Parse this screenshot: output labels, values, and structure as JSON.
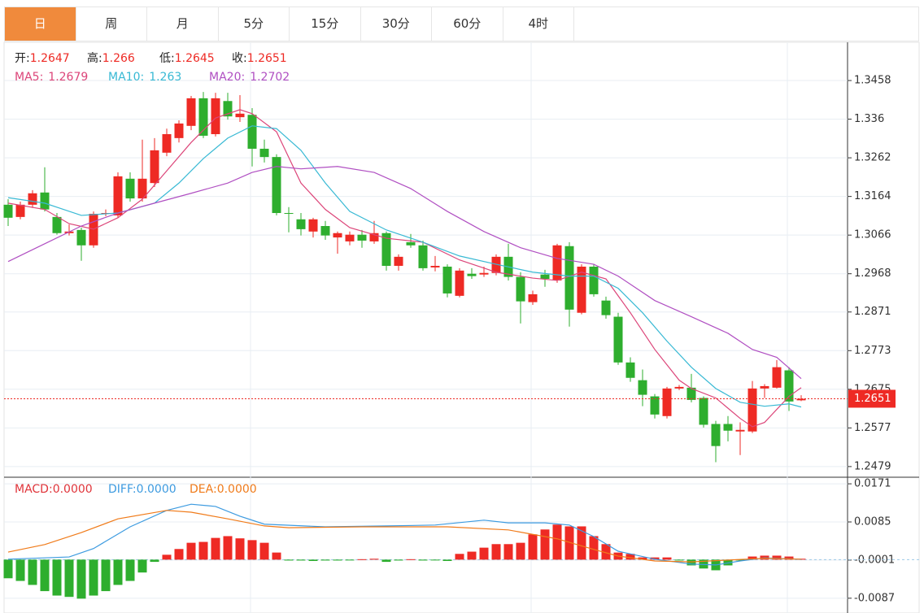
{
  "tabs": {
    "items": [
      "日",
      "周",
      "月",
      "5分",
      "15分",
      "30分",
      "60分",
      "4时"
    ],
    "active": 0
  },
  "chart_data": [
    {
      "type": "candlestick",
      "up_color": "#ee2a24",
      "down_color": "#2eae2e",
      "ylim": [
        1.2454,
        1.3555
      ],
      "yticks": [
        1.3458,
        1.336,
        1.3262,
        1.3164,
        1.3066,
        1.2968,
        1.2871,
        1.2773,
        1.2675,
        1.2577,
        1.2479
      ],
      "grid": true,
      "ohlc_labels": [
        "开:",
        "高:",
        "低:",
        "收:"
      ],
      "current_price": 1.2651,
      "open": [
        1.3143,
        1.3112,
        1.3143,
        1.3174,
        1.3112,
        1.3071,
        1.3079,
        1.304,
        1.312,
        1.3116,
        1.3209,
        1.3159,
        1.3198,
        1.3275,
        1.3312,
        1.3343,
        1.3413,
        1.3322,
        1.3406,
        1.3365,
        1.3371,
        1.3285,
        1.3264,
        1.3122,
        1.3106,
        1.3075,
        1.3089,
        1.306,
        1.305,
        1.3067,
        1.305,
        1.3071,
        1.2988,
        1.3048,
        1.304,
        1.2984,
        1.2986,
        1.2912,
        1.2968,
        1.2966,
        1.297,
        1.3011,
        1.296,
        1.2896,
        1.2966,
        1.2951,
        1.3038,
        1.2869,
        1.2986,
        1.29,
        1.2859,
        1.2743,
        1.2698,
        1.2657,
        1.2607,
        1.2677,
        1.2679,
        1.2653,
        1.2587,
        1.2587,
        1.2568,
        1.2568,
        1.2677,
        1.2679,
        1.2723,
        1.2647
      ],
      "high": [
        1.3157,
        1.3151,
        1.318,
        1.3238,
        1.3122,
        1.3093,
        1.3085,
        1.3126,
        1.3131,
        1.3225,
        1.3225,
        1.3308,
        1.3312,
        1.3336,
        1.3357,
        1.3419,
        1.3429,
        1.3427,
        1.3427,
        1.3421,
        1.3388,
        1.3308,
        1.3271,
        1.3137,
        1.3122,
        1.311,
        1.3102,
        1.3075,
        1.3075,
        1.3079,
        1.3102,
        1.3075,
        1.3017,
        1.3069,
        1.3052,
        1.3013,
        1.2992,
        1.2982,
        1.2982,
        1.2986,
        1.3017,
        1.3044,
        1.2972,
        1.2925,
        1.2978,
        1.3044,
        1.3048,
        1.2992,
        1.2992,
        1.291,
        1.2869,
        1.2756,
        1.2725,
        1.2663,
        1.2681,
        1.2686,
        1.2714,
        1.2657,
        1.2595,
        1.2607,
        1.2591,
        1.2696,
        1.2688,
        1.2749,
        1.2731,
        1.266
      ],
      "low": [
        1.3089,
        1.3106,
        1.3135,
        1.3126,
        1.3067,
        1.3065,
        1.3001,
        1.3034,
        1.3114,
        1.311,
        1.3151,
        1.3151,
        1.3188,
        1.3266,
        1.3301,
        1.3332,
        1.3312,
        1.3316,
        1.3359,
        1.3353,
        1.324,
        1.325,
        1.3116,
        1.3073,
        1.3065,
        1.306,
        1.3054,
        1.3019,
        1.304,
        1.3034,
        1.3044,
        1.2976,
        1.2976,
        1.3034,
        1.2976,
        1.2974,
        1.2908,
        1.2908,
        1.2955,
        1.296,
        1.2964,
        1.2951,
        1.2842,
        1.2889,
        1.2935,
        1.2945,
        1.2834,
        1.2865,
        1.291,
        1.2854,
        1.2737,
        1.2694,
        1.2632,
        1.2601,
        1.2601,
        1.2673,
        1.2642,
        1.2578,
        1.249,
        1.2543,
        1.2508,
        1.2564,
        1.2653,
        1.2677,
        1.262,
        1.2645
      ],
      "close": [
        1.311,
        1.3143,
        1.3172,
        1.3131,
        1.3071,
        1.3075,
        1.304,
        1.312,
        1.3122,
        1.3215,
        1.3159,
        1.3209,
        1.3281,
        1.3322,
        1.3349,
        1.3413,
        1.3318,
        1.3413,
        1.3367,
        1.3374,
        1.3285,
        1.3264,
        1.3122,
        1.312,
        1.3081,
        1.3106,
        1.3065,
        1.3071,
        1.3067,
        1.3052,
        1.3071,
        1.2988,
        1.3011,
        1.304,
        1.2982,
        1.2988,
        1.2918,
        1.2976,
        1.2962,
        1.297,
        1.3011,
        1.296,
        1.2898,
        1.2916,
        1.2955,
        1.304,
        1.2877,
        1.2986,
        1.2916,
        1.2863,
        1.2743,
        1.2704,
        1.2661,
        1.2611,
        1.2677,
        1.2681,
        1.2648,
        1.2585,
        1.2531,
        1.257,
        1.2572,
        1.2677,
        1.2683,
        1.2731,
        1.2644,
        1.2651
      ],
      "series": [
        {
          "name": "MA5:",
          "color": "#dc4579",
          "x": [
            0,
            3,
            5,
            7,
            9,
            11,
            13,
            15,
            17,
            19,
            20,
            22,
            24,
            26,
            28,
            31,
            34,
            37,
            40,
            43,
            45,
            47,
            49,
            51,
            53,
            55,
            56,
            58,
            60,
            61,
            62,
            64,
            65
          ],
          "values": [
            1.3147,
            1.3131,
            1.3095,
            1.3081,
            1.311,
            1.3157,
            1.3229,
            1.3301,
            1.3363,
            1.3384,
            1.3374,
            1.3328,
            1.3198,
            1.3131,
            1.3085,
            1.3058,
            1.3048,
            1.3003,
            1.2972,
            1.2957,
            1.2951,
            1.2972,
            1.2955,
            1.2869,
            1.2776,
            1.2698,
            1.2677,
            1.2653,
            1.2601,
            1.258,
            1.2591,
            1.2657,
            1.2679
          ]
        },
        {
          "name": "MA10:",
          "color": "#38b9d4",
          "x": [
            0,
            3,
            6,
            9,
            12,
            14,
            16,
            18,
            20,
            22,
            24,
            26,
            28,
            31,
            34,
            37,
            40,
            43,
            46,
            48,
            50,
            52,
            54,
            56,
            58,
            60,
            62,
            64,
            65
          ],
          "values": [
            1.3161,
            1.3147,
            1.3116,
            1.3122,
            1.3147,
            1.3198,
            1.326,
            1.3312,
            1.3343,
            1.3336,
            1.3281,
            1.3198,
            1.3126,
            1.3079,
            1.3048,
            1.3013,
            1.2992,
            1.2972,
            1.2962,
            1.2962,
            1.2931,
            1.2869,
            1.2797,
            1.2731,
            1.2677,
            1.2642,
            1.2632,
            1.2638,
            1.263
          ]
        },
        {
          "name": "MA20:",
          "color": "#b04fc2",
          "x": [
            0,
            3,
            6,
            9,
            12,
            15,
            18,
            20,
            22,
            24,
            27,
            30,
            33,
            36,
            39,
            42,
            45,
            48,
            50,
            53,
            56,
            59,
            61,
            63,
            65
          ],
          "values": [
            1.2999,
            1.3044,
            1.3089,
            1.3122,
            1.3147,
            1.3172,
            1.3198,
            1.3225,
            1.324,
            1.3234,
            1.324,
            1.3225,
            1.3184,
            1.3126,
            1.3075,
            1.3034,
            1.3007,
            1.2992,
            1.2962,
            1.29,
            1.2859,
            1.2817,
            1.2776,
            1.2756,
            1.2702
          ]
        }
      ]
    },
    {
      "type": "macd",
      "up_color": "#ee2a24",
      "down_color": "#2eae2e",
      "ylim": [
        -0.0113,
        0.0184
      ],
      "yticks": [
        0.0171,
        0.0085,
        -0.0001,
        -0.0087
      ],
      "histogram": {
        "name": "MACD:",
        "color": "#e0343a",
        "legend_value": {
          "value": 0,
          "label": "0.0000"
        },
        "values": [
          -0.0042,
          -0.0048,
          -0.0057,
          -0.0071,
          -0.0081,
          -0.0084,
          -0.0088,
          -0.0081,
          -0.0071,
          -0.0057,
          -0.0048,
          -0.0029,
          -0.0005,
          0.0011,
          0.0024,
          0.0038,
          0.004,
          0.0049,
          0.0053,
          0.0048,
          0.0044,
          0.0038,
          0.0016,
          -0.0002,
          -0.0002,
          -0.0003,
          -0.0002,
          -0.0002,
          -0.0001,
          0.0001,
          0.0002,
          -0.0005,
          -0.0002,
          0.0001,
          -0.0002,
          -0.0001,
          -0.0003,
          0.0013,
          0.0018,
          0.0027,
          0.0035,
          0.0035,
          0.0038,
          0.0057,
          0.0068,
          0.0079,
          0.0075,
          0.0075,
          0.0053,
          0.0035,
          0.0016,
          0.0013,
          0.0005,
          0.0005,
          0.0005,
          -0.0002,
          -0.0013,
          -0.002,
          -0.0024,
          -0.0013,
          -0.0002,
          0.0007,
          0.0009,
          0.0009,
          0.0007,
          0.0002
        ]
      },
      "series": [
        {
          "name": "DIFF:",
          "color": "#3d9be0",
          "legend_value": {
            "value": 0,
            "label": "0.0000"
          },
          "x": [
            0,
            5,
            7,
            10,
            13,
            15,
            17,
            19,
            21,
            26,
            31,
            35,
            39,
            41,
            44,
            46,
            48,
            50,
            53,
            56,
            58,
            60,
            62,
            65
          ],
          "values": [
            0.0001,
            0.0006,
            0.0025,
            0.0074,
            0.0111,
            0.0125,
            0.012,
            0.0098,
            0.008,
            0.0074,
            0.0076,
            0.0078,
            0.0089,
            0.0083,
            0.0083,
            0.0078,
            0.0052,
            0.0019,
            0.0001,
            -0.001,
            -0.0012,
            -0.0003,
            0.0004,
            0.0001
          ]
        },
        {
          "name": "DEA:",
          "color": "#f07b1a",
          "legend_value": {
            "value": 0,
            "label": "0.0000"
          },
          "x": [
            0,
            3,
            6,
            9,
            13,
            15,
            18,
            21,
            23,
            29,
            36,
            41,
            45,
            48,
            50,
            53,
            56,
            59,
            62,
            65
          ],
          "values": [
            0.0017,
            0.0034,
            0.0061,
            0.0092,
            0.0111,
            0.0107,
            0.0092,
            0.0076,
            0.0072,
            0.0074,
            0.0074,
            0.0067,
            0.0047,
            0.0023,
            0.0008,
            -0.0003,
            -0.0005,
            -0.0001,
            0.0003,
            0.0001
          ]
        }
      ]
    }
  ]
}
